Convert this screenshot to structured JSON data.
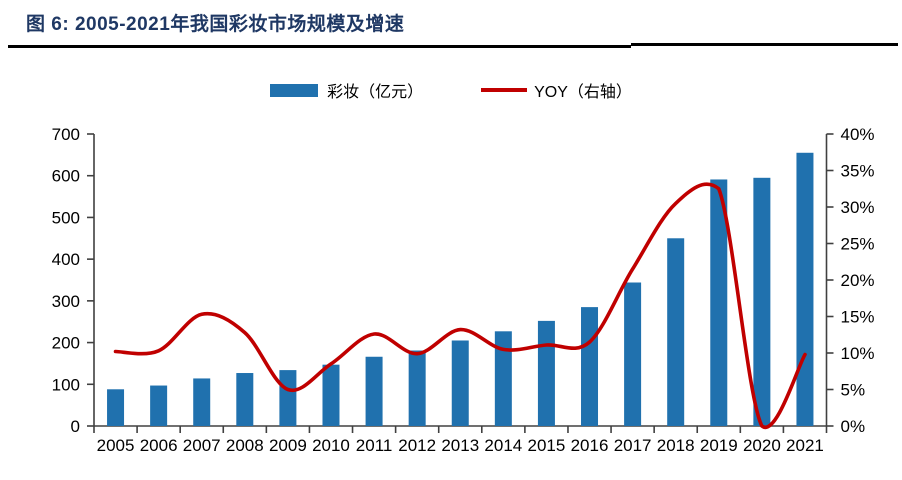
{
  "header": {
    "title": "图 6: 2005-2021年我国彩妆市场规模及增速"
  },
  "legend": {
    "items": [
      {
        "label": "彩妆（亿元）",
        "swatch": "bar"
      },
      {
        "label": "YOY（右轴）",
        "swatch": "line"
      }
    ]
  },
  "colors": {
    "bar": "#2071AE",
    "line": "#C00000",
    "title": "#1F3864",
    "rule": "#000000",
    "axis": "#404040",
    "tick_text": "#000000"
  },
  "chart_data": {
    "type": "bar",
    "subtype": "bar+line combo, line on secondary axis",
    "title": "2005-2021年我国彩妆市场规模及增速",
    "grid": "off",
    "legend_position": "top",
    "categories": [
      "2005",
      "2006",
      "2007",
      "2008",
      "2009",
      "2010",
      "2011",
      "2012",
      "2013",
      "2014",
      "2015",
      "2016",
      "2017",
      "2018",
      "2019",
      "2020",
      "2021"
    ],
    "series": [
      {
        "name": "彩妆（亿元）",
        "type": "bar",
        "axis": "left",
        "unit": "亿元",
        "values": [
          88,
          97,
          114,
          127,
          134,
          147,
          166,
          181,
          205,
          227,
          252,
          285,
          344,
          450,
          591,
          595,
          655
        ]
      },
      {
        "name": "YOY（右轴）",
        "type": "line",
        "axis": "right",
        "unit": "%",
        "values": [
          10.2,
          10.3,
          15.3,
          12.8,
          5.0,
          8.5,
          12.6,
          9.9,
          13.2,
          10.5,
          11.1,
          11.5,
          21.5,
          30.5,
          32.5,
          0.0,
          9.8
        ]
      }
    ],
    "left_axis": {
      "min": 0,
      "max": 700,
      "step": 100,
      "tick_labels": [
        "0",
        "100",
        "200",
        "300",
        "400",
        "500",
        "600",
        "700"
      ]
    },
    "right_axis": {
      "min": 0,
      "max": 40,
      "step": 5,
      "tick_labels": [
        "0%",
        "5%",
        "10%",
        "15%",
        "20%",
        "25%",
        "30%",
        "35%",
        "40%"
      ]
    }
  }
}
